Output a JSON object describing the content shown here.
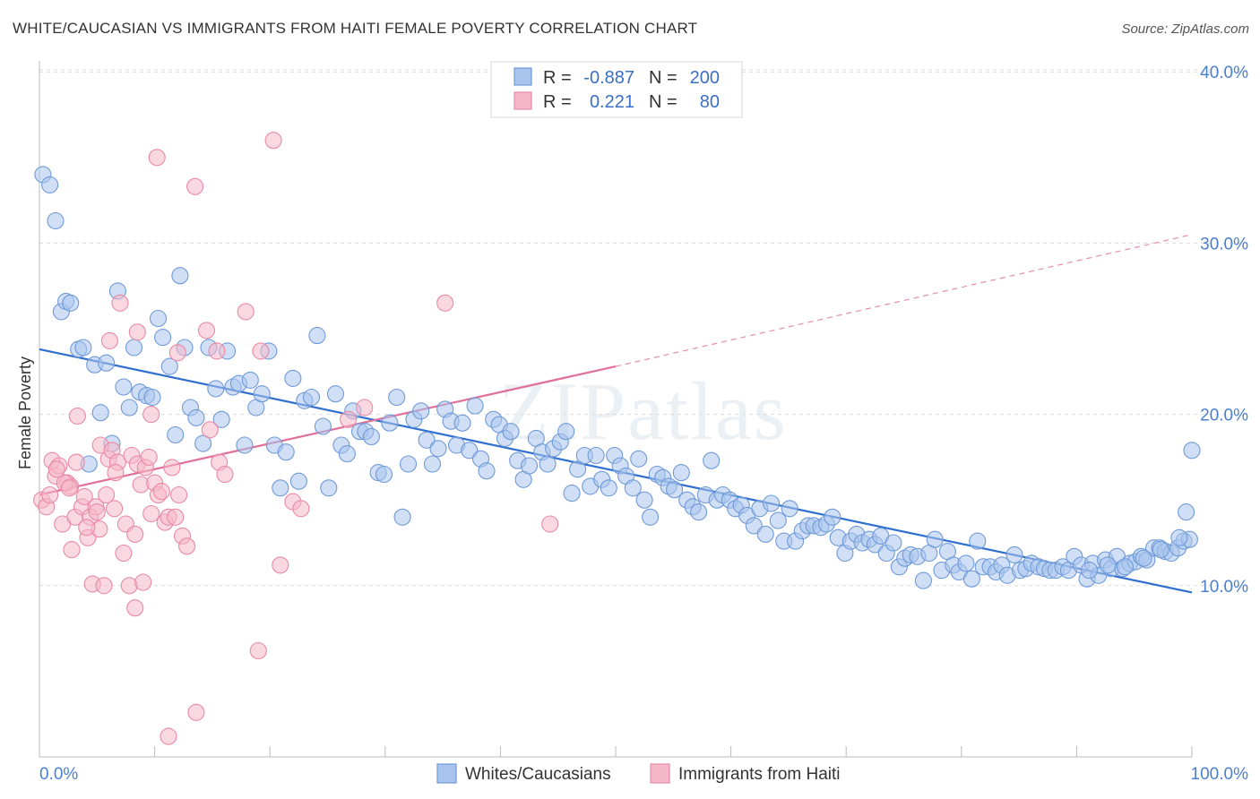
{
  "header": {
    "title": "WHITE/CAUCASIAN VS IMMIGRANTS FROM HAITI FEMALE POVERTY CORRELATION CHART",
    "source": "Source: ZipAtlas.com"
  },
  "chart_data": {
    "type": "scatter",
    "xlabel": "",
    "ylabel": "Female Poverty",
    "xlim": [
      0,
      100
    ],
    "ylim": [
      0,
      40
    ],
    "x_ticks": [
      "0.0%",
      "100.0%"
    ],
    "y_ticks": [
      {
        "value": 10,
        "label": "10.0%"
      },
      {
        "value": 20,
        "label": "20.0%"
      },
      {
        "value": 30,
        "label": "30.0%"
      },
      {
        "value": 40,
        "label": "40.0%"
      }
    ],
    "grid": true,
    "legend_placement": "top-center",
    "watermark": "ZIPatlas",
    "stats": [
      {
        "r_label": "R =",
        "r": "-0.887",
        "n_label": "N =",
        "n": "200"
      },
      {
        "r_label": "R =",
        "r": "0.221",
        "n_label": "N =",
        "n": "80"
      }
    ],
    "series": [
      {
        "name": "Whites/Caucasians",
        "color": "#a9c4ec",
        "edge": "#6f9ad8",
        "trend_color": "#2f6fcf",
        "trend": {
          "x0": 0,
          "y0": 23.8,
          "x1": 100,
          "y1": 9.6
        },
        "points": [
          [
            0.3,
            34.0
          ],
          [
            0.9,
            33.4
          ],
          [
            1.4,
            31.3
          ],
          [
            1.9,
            26.0
          ],
          [
            2.3,
            26.6
          ],
          [
            2.7,
            26.5
          ],
          [
            3.4,
            23.8
          ],
          [
            3.8,
            23.9
          ],
          [
            4.3,
            17.1
          ],
          [
            4.8,
            22.9
          ],
          [
            5.3,
            20.1
          ],
          [
            5.8,
            23.0
          ],
          [
            6.3,
            18.3
          ],
          [
            6.8,
            27.2
          ],
          [
            7.3,
            21.6
          ],
          [
            7.8,
            20.4
          ],
          [
            8.2,
            23.9
          ],
          [
            8.7,
            21.3
          ],
          [
            9.3,
            21.1
          ],
          [
            9.8,
            21.0
          ],
          [
            10.3,
            25.6
          ],
          [
            10.7,
            24.5
          ],
          [
            11.3,
            22.8
          ],
          [
            11.8,
            18.8
          ],
          [
            12.2,
            28.1
          ],
          [
            12.6,
            23.9
          ],
          [
            13.1,
            20.4
          ],
          [
            13.6,
            19.8
          ],
          [
            14.2,
            18.3
          ],
          [
            14.7,
            23.9
          ],
          [
            15.3,
            21.5
          ],
          [
            15.8,
            19.7
          ],
          [
            16.3,
            23.7
          ],
          [
            16.8,
            21.6
          ],
          [
            17.3,
            21.8
          ],
          [
            17.8,
            18.2
          ],
          [
            18.3,
            22.0
          ],
          [
            18.8,
            20.4
          ],
          [
            19.3,
            21.2
          ],
          [
            19.9,
            23.7
          ],
          [
            20.4,
            18.2
          ],
          [
            20.9,
            15.7
          ],
          [
            21.4,
            17.8
          ],
          [
            22.0,
            22.1
          ],
          [
            22.5,
            16.1
          ],
          [
            23.0,
            20.8
          ],
          [
            23.6,
            21.0
          ],
          [
            24.1,
            24.6
          ],
          [
            24.6,
            19.3
          ],
          [
            25.1,
            15.7
          ],
          [
            25.7,
            21.2
          ],
          [
            26.2,
            18.2
          ],
          [
            26.7,
            17.7
          ],
          [
            27.2,
            20.2
          ],
          [
            27.8,
            19.0
          ],
          [
            28.3,
            19.0
          ],
          [
            28.8,
            18.7
          ],
          [
            29.4,
            16.6
          ],
          [
            29.9,
            16.5
          ],
          [
            30.4,
            19.5
          ],
          [
            31.0,
            21.0
          ],
          [
            31.5,
            14.0
          ],
          [
            32.0,
            17.1
          ],
          [
            32.5,
            19.7
          ],
          [
            33.1,
            20.2
          ],
          [
            33.6,
            18.5
          ],
          [
            34.1,
            17.1
          ],
          [
            34.6,
            18.0
          ],
          [
            35.2,
            20.3
          ],
          [
            35.7,
            19.6
          ],
          [
            36.2,
            18.2
          ],
          [
            36.7,
            19.5
          ],
          [
            37.3,
            17.9
          ],
          [
            37.8,
            20.5
          ],
          [
            38.3,
            17.4
          ],
          [
            38.8,
            16.7
          ],
          [
            39.4,
            19.7
          ],
          [
            39.9,
            19.4
          ],
          [
            40.4,
            18.6
          ],
          [
            40.9,
            19.0
          ],
          [
            41.5,
            17.3
          ],
          [
            42.0,
            16.2
          ],
          [
            42.5,
            17.0
          ],
          [
            43.1,
            18.6
          ],
          [
            43.6,
            17.8
          ],
          [
            44.1,
            17.1
          ],
          [
            44.6,
            18.0
          ],
          [
            45.2,
            18.4
          ],
          [
            45.7,
            19.0
          ],
          [
            46.2,
            15.4
          ],
          [
            46.7,
            16.8
          ],
          [
            47.3,
            17.6
          ],
          [
            47.8,
            15.8
          ],
          [
            48.3,
            17.6
          ],
          [
            48.8,
            16.2
          ],
          [
            49.4,
            15.7
          ],
          [
            49.9,
            17.6
          ],
          [
            50.4,
            17.0
          ],
          [
            50.9,
            16.4
          ],
          [
            51.5,
            15.7
          ],
          [
            52.0,
            17.4
          ],
          [
            52.5,
            15.0
          ],
          [
            53.0,
            14.0
          ],
          [
            53.6,
            16.5
          ],
          [
            54.1,
            16.3
          ],
          [
            54.6,
            15.8
          ],
          [
            55.1,
            15.6
          ],
          [
            55.7,
            16.6
          ],
          [
            56.2,
            15.0
          ],
          [
            56.7,
            14.6
          ],
          [
            57.2,
            14.3
          ],
          [
            57.8,
            15.3
          ],
          [
            58.3,
            17.3
          ],
          [
            58.8,
            15.0
          ],
          [
            59.3,
            15.3
          ],
          [
            59.9,
            15.0
          ],
          [
            60.4,
            14.5
          ],
          [
            60.9,
            14.7
          ],
          [
            61.4,
            14.1
          ],
          [
            62.0,
            13.5
          ],
          [
            62.5,
            14.5
          ],
          [
            63.0,
            13.0
          ],
          [
            63.5,
            14.8
          ],
          [
            64.1,
            13.8
          ],
          [
            64.6,
            12.6
          ],
          [
            65.1,
            14.5
          ],
          [
            65.6,
            12.6
          ],
          [
            66.2,
            13.2
          ],
          [
            66.7,
            13.5
          ],
          [
            67.2,
            13.5
          ],
          [
            67.8,
            13.4
          ],
          [
            68.3,
            13.6
          ],
          [
            68.8,
            14.0
          ],
          [
            69.3,
            12.8
          ],
          [
            69.9,
            11.9
          ],
          [
            70.4,
            12.6
          ],
          [
            70.9,
            13.0
          ],
          [
            71.4,
            12.5
          ],
          [
            72.0,
            12.7
          ],
          [
            72.5,
            12.4
          ],
          [
            73.0,
            12.9
          ],
          [
            73.5,
            11.9
          ],
          [
            74.1,
            12.5
          ],
          [
            74.6,
            11.1
          ],
          [
            75.1,
            11.6
          ],
          [
            75.6,
            11.8
          ],
          [
            76.2,
            11.7
          ],
          [
            76.7,
            10.3
          ],
          [
            77.2,
            11.9
          ],
          [
            77.7,
            12.7
          ],
          [
            78.3,
            10.9
          ],
          [
            78.8,
            12.0
          ],
          [
            79.3,
            11.2
          ],
          [
            79.8,
            10.8
          ],
          [
            80.4,
            11.3
          ],
          [
            80.9,
            10.4
          ],
          [
            81.4,
            12.6
          ],
          [
            81.9,
            11.1
          ],
          [
            82.5,
            11.1
          ],
          [
            83.0,
            10.8
          ],
          [
            83.5,
            11.2
          ],
          [
            84.0,
            10.6
          ],
          [
            84.6,
            11.8
          ],
          [
            85.1,
            10.9
          ],
          [
            85.6,
            11.0
          ],
          [
            86.1,
            11.3
          ],
          [
            86.7,
            11.1
          ],
          [
            87.2,
            11.0
          ],
          [
            87.7,
            10.9
          ],
          [
            88.2,
            10.9
          ],
          [
            88.8,
            11.1
          ],
          [
            89.3,
            10.9
          ],
          [
            89.8,
            11.7
          ],
          [
            90.4,
            11.2
          ],
          [
            90.9,
            10.4
          ],
          [
            91.4,
            11.3
          ],
          [
            91.9,
            10.6
          ],
          [
            92.5,
            11.5
          ],
          [
            93.0,
            11.0
          ],
          [
            93.5,
            11.7
          ],
          [
            94.0,
            11.0
          ],
          [
            94.6,
            11.3
          ],
          [
            95.1,
            11.4
          ],
          [
            95.6,
            11.7
          ],
          [
            96.1,
            11.5
          ],
          [
            96.7,
            12.2
          ],
          [
            97.2,
            12.2
          ],
          [
            97.7,
            12.0
          ],
          [
            98.2,
            11.9
          ],
          [
            98.8,
            12.2
          ],
          [
            99.3,
            12.6
          ],
          [
            99.8,
            12.7
          ],
          [
            100.0,
            17.9
          ],
          [
            99.5,
            14.3
          ],
          [
            98.9,
            12.8
          ],
          [
            97.3,
            12.1
          ],
          [
            95.8,
            11.6
          ],
          [
            94.2,
            11.1
          ],
          [
            92.7,
            11.2
          ],
          [
            91.1,
            10.9
          ]
        ]
      },
      {
        "name": "Immigrants from Haiti",
        "color": "#f5b8c9",
        "edge": "#e889a5",
        "trend_color": "#e0709a",
        "trend": {
          "x0": 0,
          "y0": 15.3,
          "x1": 50,
          "y1": 22.8
        },
        "trend_extension": {
          "x0": 50,
          "y0": 22.8,
          "x1": 100,
          "y1": 30.5
        },
        "points": [
          [
            0.2,
            15.0
          ],
          [
            0.6,
            14.6
          ],
          [
            0.9,
            15.3
          ],
          [
            1.1,
            17.3
          ],
          [
            1.4,
            16.4
          ],
          [
            1.7,
            17.0
          ],
          [
            2.0,
            13.6
          ],
          [
            2.4,
            16.0
          ],
          [
            2.7,
            15.8
          ],
          [
            2.8,
            12.1
          ],
          [
            3.1,
            14.0
          ],
          [
            3.3,
            19.9
          ],
          [
            3.7,
            14.6
          ],
          [
            3.9,
            15.2
          ],
          [
            4.2,
            12.8
          ],
          [
            4.4,
            14.0
          ],
          [
            4.6,
            10.1
          ],
          [
            4.9,
            14.6
          ],
          [
            5.2,
            13.3
          ],
          [
            5.3,
            18.2
          ],
          [
            5.6,
            10.0
          ],
          [
            5.8,
            15.3
          ],
          [
            6.0,
            17.4
          ],
          [
            6.3,
            17.9
          ],
          [
            6.5,
            14.5
          ],
          [
            6.8,
            17.2
          ],
          [
            7.0,
            26.5
          ],
          [
            7.3,
            11.9
          ],
          [
            7.5,
            13.6
          ],
          [
            7.8,
            10.0
          ],
          [
            8.0,
            17.6
          ],
          [
            8.3,
            13.0
          ],
          [
            8.5,
            17.1
          ],
          [
            8.8,
            15.9
          ],
          [
            9.0,
            10.2
          ],
          [
            9.2,
            16.9
          ],
          [
            9.5,
            17.5
          ],
          [
            9.7,
            14.2
          ],
          [
            10.0,
            16.0
          ],
          [
            10.3,
            15.3
          ],
          [
            10.6,
            15.5
          ],
          [
            10.9,
            13.7
          ],
          [
            11.2,
            14.0
          ],
          [
            11.5,
            16.9
          ],
          [
            11.8,
            14.0
          ],
          [
            12.1,
            15.3
          ],
          [
            12.4,
            12.9
          ],
          [
            12.8,
            12.3
          ],
          [
            10.2,
            35.0
          ],
          [
            13.5,
            33.3
          ],
          [
            20.3,
            36.0
          ],
          [
            22.0,
            14.9
          ],
          [
            22.7,
            14.5
          ],
          [
            19.2,
            23.7
          ],
          [
            17.9,
            26.0
          ],
          [
            14.8,
            19.1
          ],
          [
            15.6,
            17.2
          ],
          [
            16.1,
            16.5
          ],
          [
            14.5,
            24.9
          ],
          [
            12.0,
            23.6
          ],
          [
            8.5,
            24.8
          ],
          [
            6.1,
            24.3
          ],
          [
            3.2,
            17.2
          ],
          [
            2.2,
            16.0
          ],
          [
            1.5,
            16.8
          ],
          [
            28.2,
            20.4
          ],
          [
            35.2,
            26.5
          ],
          [
            44.3,
            13.6
          ],
          [
            20.9,
            11.2
          ],
          [
            19.0,
            6.2
          ],
          [
            13.6,
            2.6
          ],
          [
            11.2,
            1.2
          ],
          [
            8.3,
            8.7
          ],
          [
            9.7,
            20.0
          ],
          [
            6.6,
            16.6
          ],
          [
            4.1,
            13.4
          ],
          [
            2.6,
            15.7
          ],
          [
            26.8,
            19.7
          ],
          [
            15.4,
            23.7
          ],
          [
            5.0,
            14.3
          ]
        ]
      }
    ]
  }
}
